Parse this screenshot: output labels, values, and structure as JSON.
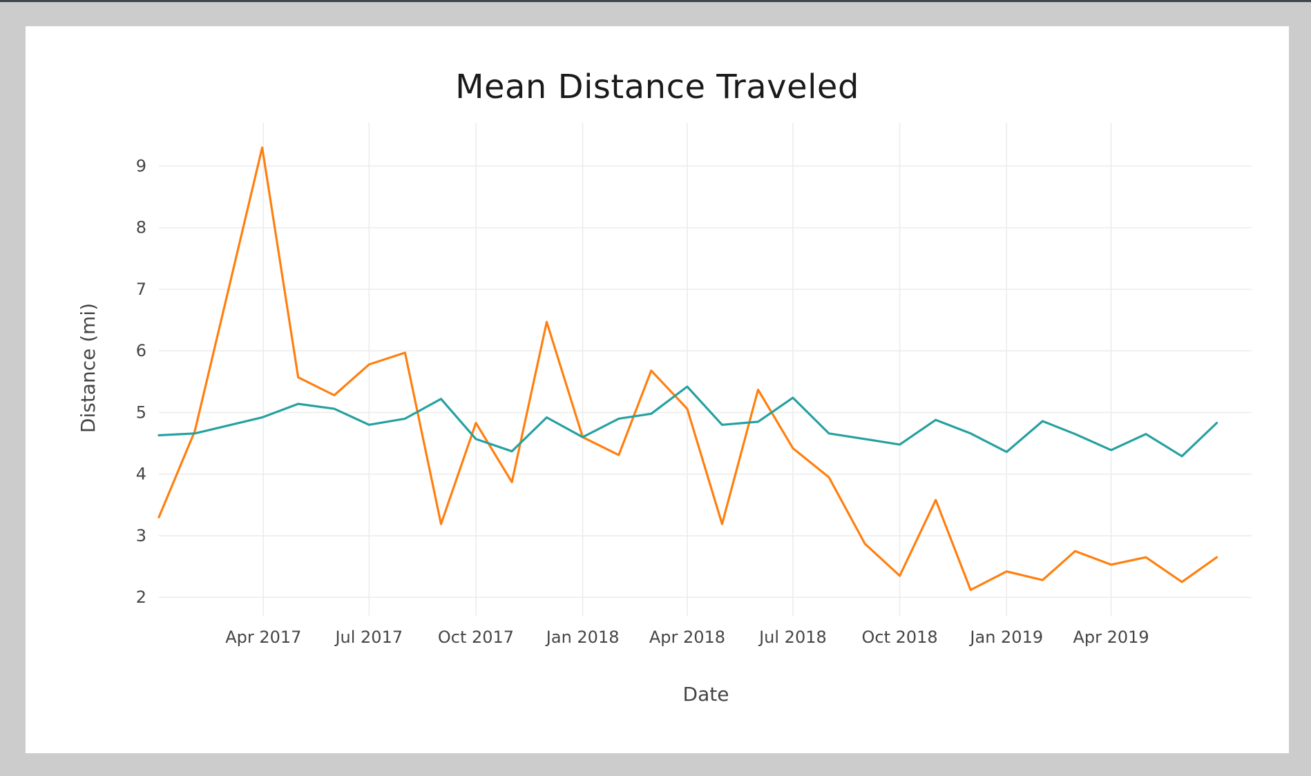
{
  "chart_data": {
    "type": "line",
    "title": "Mean Distance Traveled",
    "xlabel": "Date",
    "ylabel": "Distance (mi)",
    "ylim": [
      1.7,
      9.7
    ],
    "xlim": [
      "2017-01-01",
      "2019-07-31"
    ],
    "grid": true,
    "x_ticks": [
      {
        "date": "2017-04-01",
        "label": "Apr 2017"
      },
      {
        "date": "2017-07-01",
        "label": "Jul 2017"
      },
      {
        "date": "2017-10-01",
        "label": "Oct 2017"
      },
      {
        "date": "2018-01-01",
        "label": "Jan 2018"
      },
      {
        "date": "2018-04-01",
        "label": "Apr 2018"
      },
      {
        "date": "2018-07-01",
        "label": "Jul 2018"
      },
      {
        "date": "2018-10-01",
        "label": "Oct 2018"
      },
      {
        "date": "2019-01-01",
        "label": "Jan 2019"
      },
      {
        "date": "2019-04-01",
        "label": "Apr 2019"
      }
    ],
    "y_ticks": [
      2,
      3,
      4,
      5,
      6,
      7,
      8,
      9
    ],
    "x": [
      "2017-01-01",
      "2017-02-01",
      "2017-03-31",
      "2017-05-01",
      "2017-06-01",
      "2017-07-01",
      "2017-08-01",
      "2017-09-01",
      "2017-10-01",
      "2017-11-01",
      "2017-12-01",
      "2018-01-01",
      "2018-02-01",
      "2018-03-01",
      "2018-04-01",
      "2018-05-01",
      "2018-06-01",
      "2018-07-01",
      "2018-08-01",
      "2018-09-01",
      "2018-10-01",
      "2018-11-01",
      "2018-12-01",
      "2019-01-01",
      "2019-02-01",
      "2019-03-01",
      "2019-04-01",
      "2019-05-01",
      "2019-06-01",
      "2019-07-01"
    ],
    "series": [
      {
        "color": "#ff7f0e",
        "values": [
          3.3,
          4.7,
          9.3,
          5.57,
          5.28,
          5.78,
          5.97,
          3.19,
          4.83,
          3.87,
          6.47,
          4.6,
          4.31,
          5.68,
          5.06,
          3.19,
          5.37,
          4.42,
          3.95,
          2.87,
          2.35,
          3.58,
          2.12,
          2.42,
          2.28,
          2.75,
          2.53,
          2.65,
          2.25,
          2.65
        ]
      },
      {
        "color": "#26a0a0",
        "values": [
          4.63,
          4.66,
          4.92,
          5.14,
          5.06,
          4.8,
          4.9,
          5.22,
          4.57,
          4.37,
          4.92,
          4.6,
          4.9,
          4.98,
          5.42,
          4.8,
          4.85,
          5.24,
          4.66,
          4.57,
          4.48,
          4.88,
          4.66,
          4.36,
          4.86,
          4.65,
          4.39,
          4.65,
          4.29,
          4.83
        ]
      }
    ]
  }
}
